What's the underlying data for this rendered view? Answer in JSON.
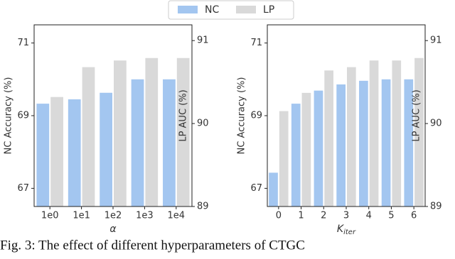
{
  "legend": [
    "NC",
    "LP"
  ],
  "chart_data": [
    {
      "type": "bar",
      "xlabel": "α",
      "ylabel": "NC Accuracy (%)",
      "y2label": "LP AUC (%)",
      "categories": [
        "1e0",
        "1e1",
        "1e2",
        "1e3",
        "1e4"
      ],
      "series": [
        {
          "name": "NC",
          "color": "#a3c6f0",
          "values": [
            69.33,
            69.45,
            69.63,
            70.0,
            70.0
          ]
        },
        {
          "name": "LP",
          "color": "#d9d9d9",
          "axis": "y2",
          "values": [
            90.32,
            90.68,
            90.76,
            90.79,
            90.79
          ]
        }
      ],
      "ylim": [
        66.5,
        71.5
      ],
      "yticks": [
        67,
        69,
        71
      ],
      "y2lim": [
        89,
        91.19
      ],
      "y2ticks": [
        89,
        90,
        91
      ]
    },
    {
      "type": "bar",
      "xlabel": "K",
      "xlabel_sub": "iter",
      "ylabel": "NC Accuracy (%)",
      "y2label": "LP AUC (%)",
      "categories": [
        "0",
        "1",
        "2",
        "3",
        "4",
        "5",
        "6"
      ],
      "series": [
        {
          "name": "NC",
          "color": "#a3c6f0",
          "values": [
            67.43,
            69.33,
            69.69,
            69.86,
            69.96,
            70.0,
            70.0
          ]
        },
        {
          "name": "LP",
          "color": "#d9d9d9",
          "axis": "y2",
          "values": [
            90.15,
            90.37,
            90.64,
            90.68,
            90.76,
            90.76,
            90.79
          ]
        }
      ],
      "ylim": [
        66.5,
        71.5
      ],
      "yticks": [
        67,
        69,
        71
      ],
      "y2lim": [
        89,
        91.19
      ],
      "y2ticks": [
        89,
        90,
        91
      ]
    }
  ],
  "caption": "Fig. 3: The effect of different hyperparameters of CTGC"
}
